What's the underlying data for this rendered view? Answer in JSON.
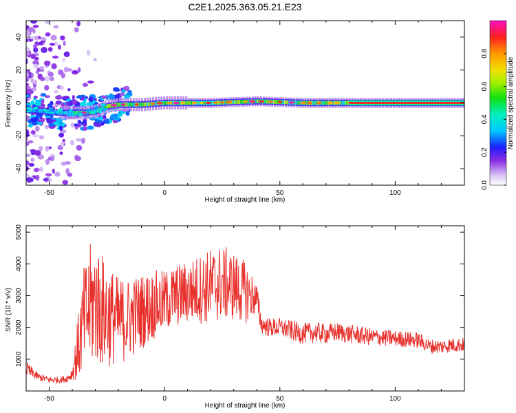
{
  "title": "C2E1.2025.363.05.21.E23",
  "chart_data": [
    {
      "type": "heatmap",
      "name": "spectrogram",
      "xlabel": "Height of straight line (km)",
      "ylabel": "Frequency (Hz)",
      "xlim": [
        -60,
        130
      ],
      "ylim": [
        -50,
        50
      ],
      "xticks": [
        "-50",
        "0",
        "50",
        "100"
      ],
      "xtick_values": [
        -50,
        0,
        50,
        100
      ],
      "yticks": [
        "40",
        "20",
        "0",
        "-20",
        "-40"
      ],
      "ytick_values": [
        40,
        20,
        0,
        -20,
        -40
      ],
      "colorbar": {
        "label": "Normalized spectral amplitude",
        "ticks": [
          "0.0",
          "0.2",
          "0.4",
          "0.6",
          "0.8"
        ],
        "tick_values": [
          0.0,
          0.2,
          0.4,
          0.6,
          0.8
        ],
        "range": [
          0,
          1
        ]
      },
      "peak_track": {
        "x_km": [
          -60,
          -45,
          -40,
          -35,
          -30,
          -25,
          -20,
          -10,
          0,
          10,
          20,
          40,
          60,
          80,
          100,
          130
        ],
        "freq_hz": [
          -4,
          -6,
          -6,
          -6,
          -5,
          -2,
          -1,
          -1,
          0,
          0,
          0,
          1,
          0,
          0,
          0,
          0
        ]
      }
    },
    {
      "type": "line",
      "name": "snr",
      "xlabel": "Height of straight line (km)",
      "ylabel": "SNR (10 * v/v)",
      "xlim": [
        -60,
        130
      ],
      "ylim": [
        0,
        5200
      ],
      "xticks": [
        "-50",
        "0",
        "50",
        "100"
      ],
      "xtick_values": [
        -50,
        0,
        50,
        100
      ],
      "yticks": [
        "5000",
        "4000",
        "3000",
        "2000",
        "1000"
      ],
      "ytick_values": [
        5000,
        4000,
        3000,
        2000,
        1000
      ],
      "color": "#e8312c",
      "envelope": {
        "x": [
          -60,
          -55,
          -50,
          -45,
          -42,
          -40,
          -38,
          -35,
          -32,
          -30,
          -28,
          -25,
          -22,
          -20,
          -15,
          -10,
          -5,
          0,
          5,
          10,
          15,
          20,
          25,
          30,
          35,
          38,
          40,
          42,
          45,
          50,
          55,
          60,
          65,
          70,
          75,
          80,
          90,
          100,
          110,
          115,
          120,
          125,
          130
        ],
        "center": [
          700,
          450,
          350,
          350,
          400,
          550,
          1200,
          2200,
          2700,
          2800,
          2600,
          2400,
          2300,
          2200,
          2300,
          2500,
          2700,
          2800,
          3000,
          3100,
          3200,
          3300,
          3400,
          3300,
          3100,
          3000,
          2900,
          2100,
          2000,
          2000,
          1900,
          1800,
          1850,
          1800,
          1850,
          1800,
          1700,
          1650,
          1600,
          1400,
          1400,
          1450,
          1450
        ],
        "amplitude": [
          250,
          120,
          110,
          100,
          120,
          200,
          900,
          1700,
          2000,
          2000,
          1900,
          1700,
          1500,
          1400,
          1300,
          1200,
          1100,
          1000,
          1000,
          1000,
          1100,
          1200,
          1200,
          1100,
          1000,
          700,
          500,
          300,
          300,
          300,
          320,
          330,
          330,
          320,
          300,
          300,
          280,
          260,
          250,
          230,
          230,
          230,
          230
        ]
      }
    }
  ]
}
